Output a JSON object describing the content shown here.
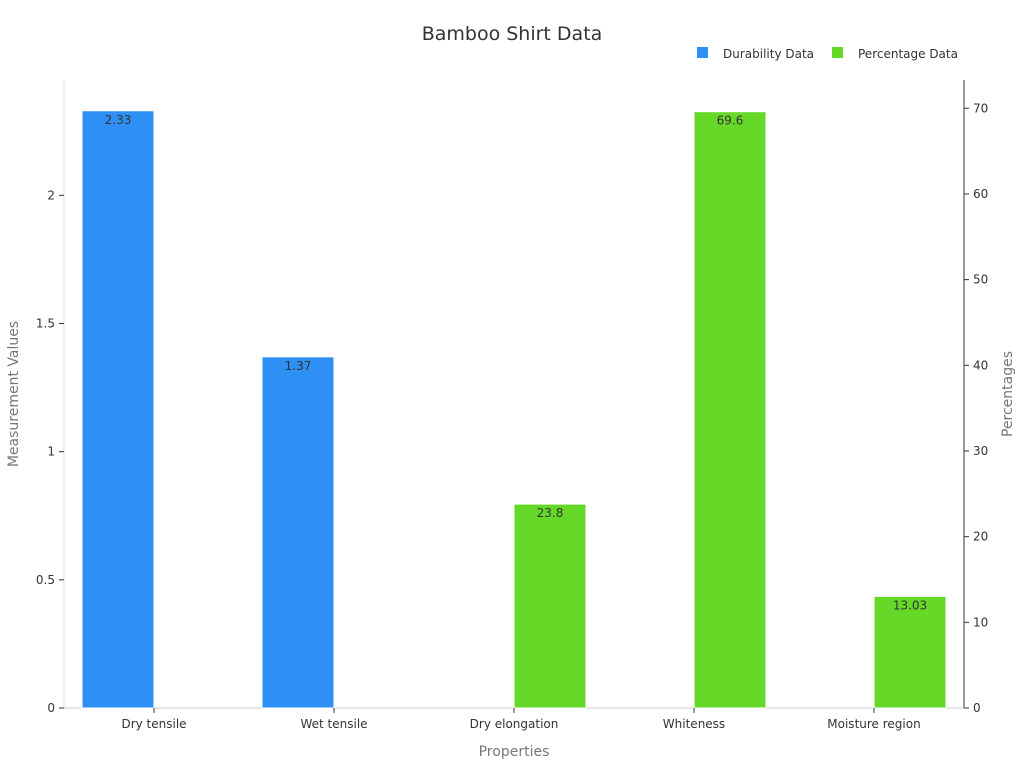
{
  "chart_data": {
    "type": "bar",
    "title": "Bamboo Shirt Data",
    "xlabel": "Properties",
    "ylabel_left": "Measurement Values",
    "ylabel_right": "Percentages",
    "categories": [
      "Dry tensile",
      "Wet tensile",
      "Dry elongation",
      "Whiteness",
      "Moisture region"
    ],
    "ylim_left": [
      0,
      2.45
    ],
    "ylim_right": [
      0,
      73.3
    ],
    "yticks_left": [
      0,
      0.5,
      1,
      1.5,
      2
    ],
    "yticks_left_labels": [
      "0",
      "0.5",
      "1",
      "1.5",
      "2"
    ],
    "yticks_right": [
      0,
      10,
      20,
      30,
      40,
      50,
      60,
      70
    ],
    "yticks_right_labels": [
      "0",
      "10",
      "20",
      "30",
      "40",
      "50",
      "60",
      "70"
    ],
    "legend_position": "top-right",
    "grid": false,
    "series": [
      {
        "name": "Durability Data",
        "axis": "left",
        "color": "#2e90f5",
        "values": [
          2.33,
          1.37,
          null,
          null,
          null
        ],
        "labels": [
          "2.33",
          "1.37",
          "",
          "",
          ""
        ]
      },
      {
        "name": "Percentage Data",
        "axis": "right",
        "color": "#66d928",
        "values": [
          null,
          null,
          23.8,
          69.6,
          13.03
        ],
        "labels": [
          "",
          "",
          "23.8",
          "69.6",
          "13.03"
        ]
      }
    ]
  }
}
